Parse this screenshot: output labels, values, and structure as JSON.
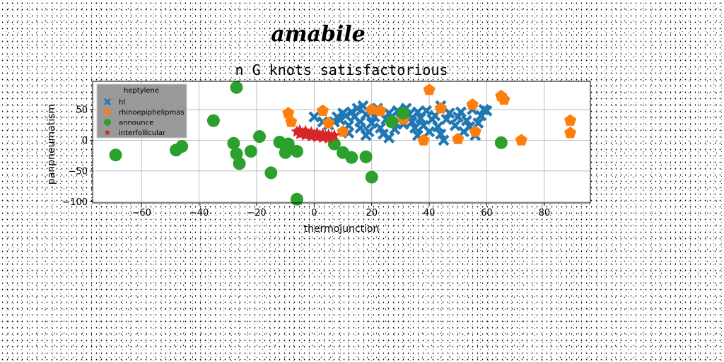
{
  "chart_data": {
    "type": "scatter",
    "suptitle": "amabile",
    "title": "n G knots satisfactorious",
    "xlabel": "thermojunction",
    "ylabel": "panpneumatism",
    "xlim": [
      -77,
      96
    ],
    "ylim": [
      -102,
      96
    ],
    "xticks": [
      -60,
      -40,
      -20,
      0,
      20,
      40,
      60,
      80
    ],
    "yticks": [
      -100,
      -50,
      0,
      50
    ],
    "grid": true,
    "legend": {
      "title": "heptylene",
      "placement": "top-left"
    },
    "series": [
      {
        "name": "hl",
        "marker": "X",
        "color": "#1f77b4",
        "points": [
          [
            0,
            38
          ],
          [
            3,
            30
          ],
          [
            5,
            25
          ],
          [
            7,
            30
          ],
          [
            8,
            38
          ],
          [
            10,
            44
          ],
          [
            9,
            33
          ],
          [
            11,
            40
          ],
          [
            12,
            24
          ],
          [
            13,
            46
          ],
          [
            14,
            38
          ],
          [
            15,
            52
          ],
          [
            16,
            30
          ],
          [
            16,
            20
          ],
          [
            17,
            56
          ],
          [
            18,
            42
          ],
          [
            19,
            14
          ],
          [
            20,
            28
          ],
          [
            20,
            47
          ],
          [
            21,
            38
          ],
          [
            22,
            52
          ],
          [
            23,
            20
          ],
          [
            24,
            10
          ],
          [
            25,
            34
          ],
          [
            26,
            44
          ],
          [
            27,
            30
          ],
          [
            28,
            18
          ],
          [
            29,
            48
          ],
          [
            30,
            36
          ],
          [
            31,
            26
          ],
          [
            32,
            52
          ],
          [
            33,
            42
          ],
          [
            34,
            30
          ],
          [
            35,
            20
          ],
          [
            36,
            46
          ],
          [
            37,
            36
          ],
          [
            38,
            24
          ],
          [
            39,
            48
          ],
          [
            40,
            14
          ],
          [
            41,
            34
          ],
          [
            42,
            40
          ],
          [
            43,
            22
          ],
          [
            44,
            10
          ],
          [
            44,
            56
          ],
          [
            45,
            0
          ],
          [
            46,
            34
          ],
          [
            47,
            44
          ],
          [
            49,
            24
          ],
          [
            50,
            38
          ],
          [
            51,
            46
          ],
          [
            52,
            14
          ],
          [
            53,
            32
          ],
          [
            54,
            22
          ],
          [
            55,
            50
          ],
          [
            56,
            8
          ],
          [
            57,
            28
          ],
          [
            58,
            40
          ],
          [
            59,
            50
          ],
          [
            60,
            48
          ],
          [
            18,
            8
          ],
          [
            26,
            4
          ],
          [
            12,
            12
          ],
          [
            36,
            8
          ]
        ]
      },
      {
        "name": "rhinoepiphelipmas",
        "marker": "pentagon",
        "color": "#ff7f0e",
        "points": [
          [
            -9,
            44
          ],
          [
            -8,
            30
          ],
          [
            3,
            48
          ],
          [
            5,
            28
          ],
          [
            10,
            14
          ],
          [
            20,
            50
          ],
          [
            23,
            48
          ],
          [
            31,
            34
          ],
          [
            38,
            0
          ],
          [
            40,
            82
          ],
          [
            44,
            52
          ],
          [
            50,
            2
          ],
          [
            55,
            58
          ],
          [
            56,
            14
          ],
          [
            65,
            72
          ],
          [
            66,
            66
          ],
          [
            72,
            0
          ],
          [
            89,
            32
          ],
          [
            89,
            12
          ]
        ]
      },
      {
        "name": "announce",
        "marker": "circle",
        "color": "#2ca02c",
        "points": [
          [
            -69,
            -24
          ],
          [
            -63,
            40
          ],
          [
            -48,
            -16
          ],
          [
            -46,
            -10
          ],
          [
            -35,
            32
          ],
          [
            -28,
            -5
          ],
          [
            -27,
            86
          ],
          [
            -27,
            -22
          ],
          [
            -26,
            -38
          ],
          [
            -22,
            -18
          ],
          [
            -19,
            6
          ],
          [
            -15,
            -53
          ],
          [
            -12,
            -3
          ],
          [
            -10,
            -20
          ],
          [
            -9,
            -6
          ],
          [
            -6,
            -96
          ],
          [
            -6,
            -18
          ],
          [
            7,
            -6
          ],
          [
            10,
            -20
          ],
          [
            13,
            -28
          ],
          [
            18,
            -27
          ],
          [
            20,
            -60
          ],
          [
            27,
            30
          ],
          [
            31,
            44
          ],
          [
            65,
            -4
          ]
        ]
      },
      {
        "name": "interfollicular",
        "marker": "star",
        "color": "#d62728",
        "points": [
          [
            -6,
            14
          ],
          [
            -5,
            16
          ],
          [
            -4,
            12
          ],
          [
            -3,
            15
          ],
          [
            -2,
            10
          ],
          [
            -1,
            13
          ],
          [
            0,
            9
          ],
          [
            1,
            12
          ],
          [
            2,
            8
          ],
          [
            3,
            10
          ],
          [
            4,
            7
          ],
          [
            5,
            9
          ],
          [
            6,
            6
          ],
          [
            7,
            8
          ],
          [
            -5,
            10
          ],
          [
            -3,
            8
          ],
          [
            -1,
            6
          ],
          [
            1,
            5
          ],
          [
            3,
            4
          ],
          [
            5,
            3
          ]
        ]
      }
    ]
  }
}
